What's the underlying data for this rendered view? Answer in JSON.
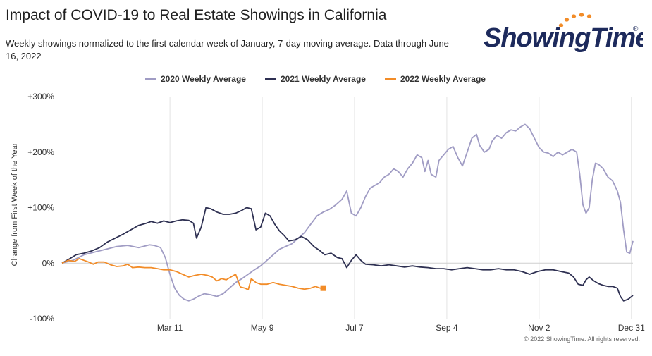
{
  "title": "Impact of COVID-19 to Real Estate Showings in California",
  "subtitle": "Weekly showings normalized to the first calendar week of January, 7-day moving average. Data through June 16, 2022",
  "logo": {
    "text": "ShowingTime",
    "registered": "®",
    "dot_color": "#f28c28",
    "text_color": "#1d2a5c"
  },
  "copyright": "© 2022 ShowingTime. All rights reserved.",
  "chart_data": {
    "type": "line",
    "ylabel": "Change from First Week of the Year",
    "xlim": [
      1,
      366
    ],
    "ylim": [
      -100,
      300
    ],
    "yticks": [
      {
        "value": 300,
        "label": "+300%"
      },
      {
        "value": 200,
        "label": "+200%"
      },
      {
        "value": 100,
        "label": "+100%"
      },
      {
        "value": 0,
        "label": "0%"
      },
      {
        "value": -100,
        "label": "-100%"
      }
    ],
    "xticks": [
      {
        "day": 70,
        "label": "Mar 11"
      },
      {
        "day": 129,
        "label": "May 9"
      },
      {
        "day": 188,
        "label": "Jul 7"
      },
      {
        "day": 247,
        "label": "Sep 4"
      },
      {
        "day": 306,
        "label": "Nov 2"
      },
      {
        "day": 365,
        "label": "Dec 31"
      }
    ],
    "gridlines": "vertical",
    "legend_position": "top",
    "series": [
      {
        "name": "2020 Weekly Average",
        "color": "#a09cc4",
        "points": [
          [
            1,
            0
          ],
          [
            8,
            5
          ],
          [
            15,
            15
          ],
          [
            22,
            20
          ],
          [
            29,
            25
          ],
          [
            36,
            30
          ],
          [
            43,
            32
          ],
          [
            50,
            28
          ],
          [
            57,
            33
          ],
          [
            60,
            32
          ],
          [
            64,
            28
          ],
          [
            67,
            10
          ],
          [
            70,
            -20
          ],
          [
            73,
            -45
          ],
          [
            76,
            -58
          ],
          [
            79,
            -65
          ],
          [
            82,
            -68
          ],
          [
            85,
            -65
          ],
          [
            88,
            -60
          ],
          [
            92,
            -55
          ],
          [
            96,
            -57
          ],
          [
            100,
            -60
          ],
          [
            104,
            -55
          ],
          [
            108,
            -45
          ],
          [
            112,
            -35
          ],
          [
            116,
            -28
          ],
          [
            120,
            -20
          ],
          [
            124,
            -12
          ],
          [
            128,
            -5
          ],
          [
            132,
            5
          ],
          [
            136,
            15
          ],
          [
            140,
            25
          ],
          [
            144,
            30
          ],
          [
            148,
            35
          ],
          [
            152,
            45
          ],
          [
            156,
            55
          ],
          [
            160,
            70
          ],
          [
            164,
            85
          ],
          [
            168,
            92
          ],
          [
            172,
            97
          ],
          [
            176,
            105
          ],
          [
            180,
            115
          ],
          [
            183,
            130
          ],
          [
            186,
            90
          ],
          [
            189,
            85
          ],
          [
            192,
            100
          ],
          [
            195,
            120
          ],
          [
            198,
            135
          ],
          [
            201,
            140
          ],
          [
            204,
            145
          ],
          [
            207,
            155
          ],
          [
            210,
            160
          ],
          [
            213,
            170
          ],
          [
            216,
            165
          ],
          [
            219,
            155
          ],
          [
            222,
            170
          ],
          [
            225,
            180
          ],
          [
            228,
            195
          ],
          [
            231,
            190
          ],
          [
            233,
            165
          ],
          [
            235,
            185
          ],
          [
            237,
            160
          ],
          [
            240,
            155
          ],
          [
            242,
            185
          ],
          [
            245,
            195
          ],
          [
            248,
            205
          ],
          [
            251,
            210
          ],
          [
            254,
            190
          ],
          [
            257,
            175
          ],
          [
            260,
            200
          ],
          [
            263,
            225
          ],
          [
            266,
            232
          ],
          [
            268,
            212
          ],
          [
            271,
            200
          ],
          [
            274,
            205
          ],
          [
            276,
            220
          ],
          [
            279,
            230
          ],
          [
            282,
            225
          ],
          [
            285,
            235
          ],
          [
            288,
            240
          ],
          [
            291,
            238
          ],
          [
            294,
            245
          ],
          [
            297,
            250
          ],
          [
            300,
            242
          ],
          [
            303,
            225
          ],
          [
            306,
            208
          ],
          [
            309,
            200
          ],
          [
            312,
            198
          ],
          [
            315,
            192
          ],
          [
            318,
            200
          ],
          [
            321,
            195
          ],
          [
            324,
            200
          ],
          [
            327,
            205
          ],
          [
            330,
            200
          ],
          [
            332,
            160
          ],
          [
            334,
            105
          ],
          [
            336,
            90
          ],
          [
            338,
            100
          ],
          [
            340,
            150
          ],
          [
            342,
            180
          ],
          [
            344,
            178
          ],
          [
            347,
            170
          ],
          [
            350,
            155
          ],
          [
            353,
            148
          ],
          [
            356,
            130
          ],
          [
            358,
            110
          ],
          [
            360,
            60
          ],
          [
            362,
            20
          ],
          [
            364,
            18
          ],
          [
            366,
            40
          ]
        ]
      },
      {
        "name": "2021 Weekly Average",
        "color": "#2e3052",
        "points": [
          [
            1,
            0
          ],
          [
            6,
            8
          ],
          [
            10,
            15
          ],
          [
            15,
            18
          ],
          [
            20,
            22
          ],
          [
            25,
            28
          ],
          [
            30,
            38
          ],
          [
            35,
            45
          ],
          [
            40,
            52
          ],
          [
            45,
            60
          ],
          [
            50,
            68
          ],
          [
            55,
            72
          ],
          [
            58,
            75
          ],
          [
            62,
            72
          ],
          [
            66,
            76
          ],
          [
            70,
            73
          ],
          [
            74,
            76
          ],
          [
            78,
            78
          ],
          [
            82,
            77
          ],
          [
            85,
            72
          ],
          [
            87,
            45
          ],
          [
            90,
            65
          ],
          [
            93,
            100
          ],
          [
            96,
            98
          ],
          [
            100,
            92
          ],
          [
            104,
            88
          ],
          [
            108,
            88
          ],
          [
            112,
            90
          ],
          [
            116,
            95
          ],
          [
            119,
            100
          ],
          [
            122,
            98
          ],
          [
            125,
            60
          ],
          [
            128,
            65
          ],
          [
            131,
            90
          ],
          [
            134,
            85
          ],
          [
            137,
            70
          ],
          [
            140,
            58
          ],
          [
            143,
            50
          ],
          [
            146,
            40
          ],
          [
            150,
            42
          ],
          [
            154,
            48
          ],
          [
            158,
            42
          ],
          [
            162,
            30
          ],
          [
            166,
            22
          ],
          [
            169,
            15
          ],
          [
            173,
            18
          ],
          [
            177,
            10
          ],
          [
            180,
            8
          ],
          [
            183,
            -8
          ],
          [
            186,
            5
          ],
          [
            189,
            15
          ],
          [
            192,
            5
          ],
          [
            195,
            -2
          ],
          [
            200,
            -3
          ],
          [
            205,
            -5
          ],
          [
            210,
            -3
          ],
          [
            215,
            -5
          ],
          [
            220,
            -7
          ],
          [
            225,
            -5
          ],
          [
            230,
            -7
          ],
          [
            235,
            -8
          ],
          [
            240,
            -10
          ],
          [
            245,
            -10
          ],
          [
            250,
            -12
          ],
          [
            255,
            -10
          ],
          [
            260,
            -8
          ],
          [
            265,
            -10
          ],
          [
            270,
            -12
          ],
          [
            275,
            -12
          ],
          [
            280,
            -10
          ],
          [
            285,
            -12
          ],
          [
            290,
            -12
          ],
          [
            295,
            -15
          ],
          [
            300,
            -20
          ],
          [
            305,
            -15
          ],
          [
            310,
            -12
          ],
          [
            315,
            -12
          ],
          [
            320,
            -15
          ],
          [
            325,
            -18
          ],
          [
            328,
            -25
          ],
          [
            331,
            -38
          ],
          [
            334,
            -40
          ],
          [
            336,
            -30
          ],
          [
            338,
            -25
          ],
          [
            341,
            -32
          ],
          [
            344,
            -37
          ],
          [
            347,
            -40
          ],
          [
            350,
            -42
          ],
          [
            353,
            -42
          ],
          [
            356,
            -45
          ],
          [
            358,
            -60
          ],
          [
            360,
            -68
          ],
          [
            363,
            -65
          ],
          [
            366,
            -58
          ]
        ]
      },
      {
        "name": "2022 Weekly Average",
        "color": "#f28c28",
        "marker_end": true,
        "points": [
          [
            1,
            0
          ],
          [
            5,
            5
          ],
          [
            9,
            3
          ],
          [
            12,
            8
          ],
          [
            15,
            5
          ],
          [
            18,
            2
          ],
          [
            21,
            -2
          ],
          [
            24,
            2
          ],
          [
            28,
            2
          ],
          [
            32,
            -3
          ],
          [
            36,
            -6
          ],
          [
            40,
            -5
          ],
          [
            43,
            -2
          ],
          [
            46,
            -8
          ],
          [
            50,
            -7
          ],
          [
            54,
            -8
          ],
          [
            58,
            -8
          ],
          [
            62,
            -10
          ],
          [
            66,
            -12
          ],
          [
            70,
            -12
          ],
          [
            74,
            -15
          ],
          [
            78,
            -20
          ],
          [
            82,
            -25
          ],
          [
            86,
            -22
          ],
          [
            90,
            -20
          ],
          [
            94,
            -22
          ],
          [
            97,
            -25
          ],
          [
            100,
            -32
          ],
          [
            103,
            -28
          ],
          [
            106,
            -30
          ],
          [
            109,
            -25
          ],
          [
            112,
            -20
          ],
          [
            115,
            -43
          ],
          [
            118,
            -45
          ],
          [
            120,
            -48
          ],
          [
            122,
            -28
          ],
          [
            125,
            -35
          ],
          [
            128,
            -38
          ],
          [
            132,
            -38
          ],
          [
            136,
            -35
          ],
          [
            140,
            -38
          ],
          [
            144,
            -40
          ],
          [
            148,
            -42
          ],
          [
            152,
            -45
          ],
          [
            156,
            -47
          ],
          [
            160,
            -45
          ],
          [
            163,
            -42
          ],
          [
            166,
            -45
          ],
          [
            168,
            -45
          ]
        ]
      }
    ]
  }
}
